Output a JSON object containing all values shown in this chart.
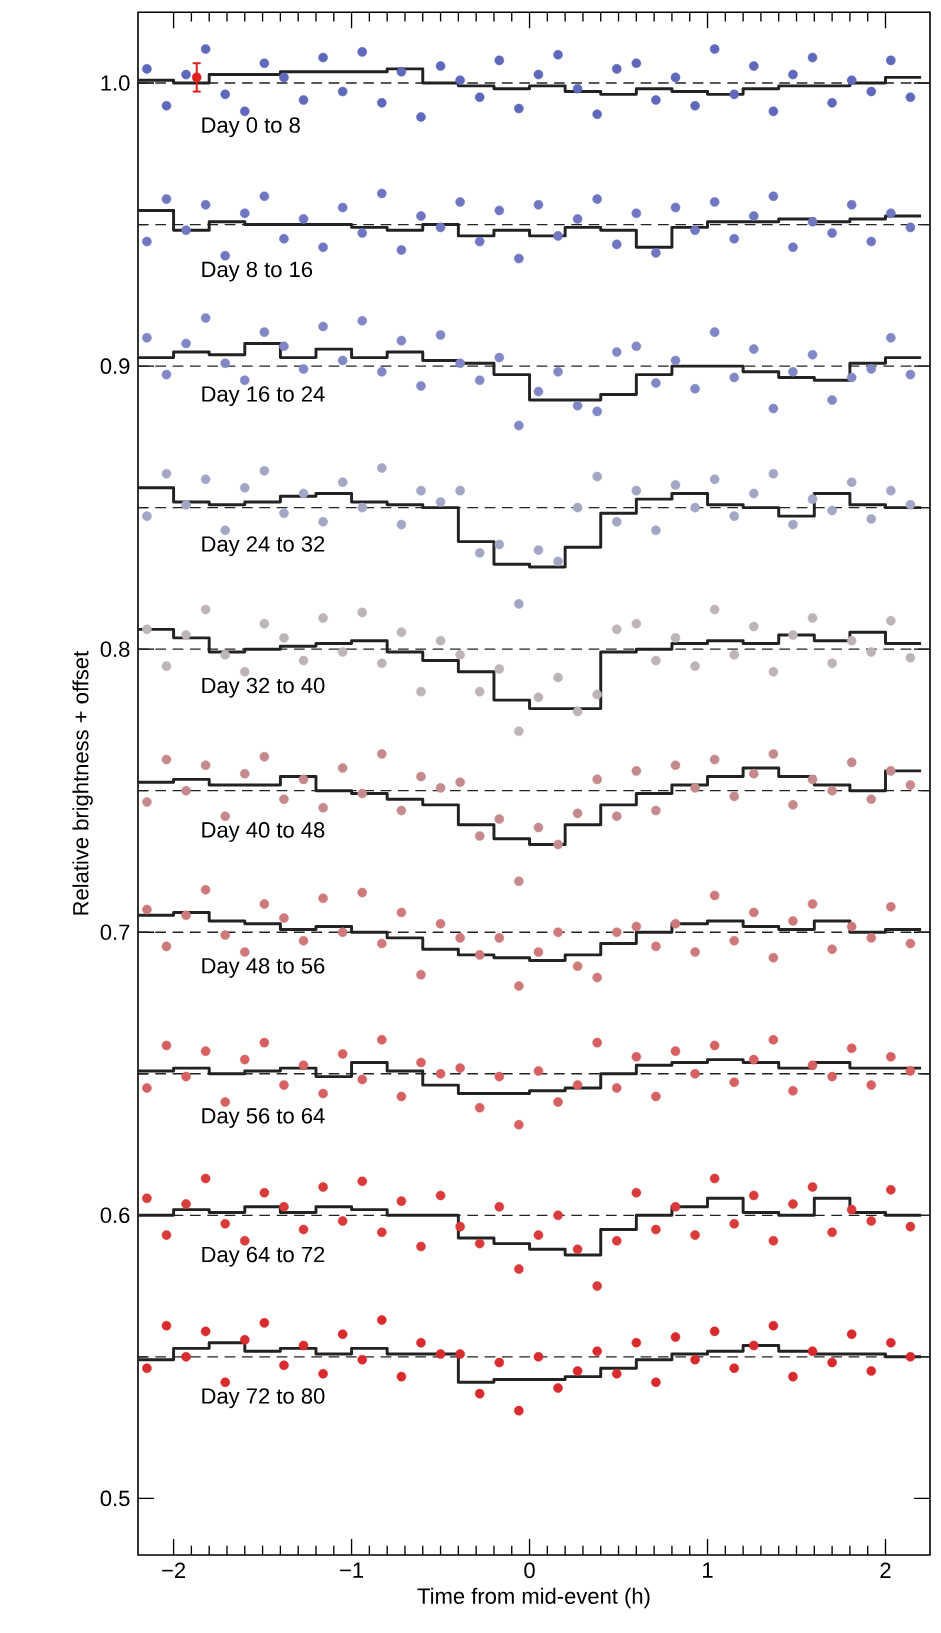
{
  "chart_data": {
    "type": "scatter",
    "xlabel": "Time from mid-event (h)",
    "ylabel": "Relative brightness + offset",
    "xlim": [
      -2.2,
      2.25
    ],
    "ylim": [
      0.48,
      1.025
    ],
    "xticks": [
      {
        "value": -2,
        "label": "−2"
      },
      {
        "value": -1,
        "label": "−1"
      },
      {
        "value": 0,
        "label": "0"
      },
      {
        "value": 1,
        "label": "1"
      },
      {
        "value": 2,
        "label": "2"
      }
    ],
    "yticks": [
      {
        "value": 0.5,
        "label": "0.5"
      },
      {
        "value": 0.6,
        "label": "0.6"
      },
      {
        "value": 0.7,
        "label": "0.7"
      },
      {
        "value": 0.8,
        "label": "0.8"
      },
      {
        "value": 0.9,
        "label": "0.9"
      },
      {
        "value": 1.0,
        "label": "1.0"
      }
    ],
    "grid": false,
    "x": [
      -2.15,
      -2.04,
      -1.93,
      -1.82,
      -1.71,
      -1.6,
      -1.49,
      -1.38,
      -1.27,
      -1.16,
      -1.05,
      -0.94,
      -0.83,
      -0.72,
      -0.61,
      -0.5,
      -0.39,
      -0.28,
      -0.17,
      -0.06,
      0.05,
      0.16,
      0.27,
      0.38,
      0.49,
      0.6,
      0.71,
      0.82,
      0.93,
      1.04,
      1.15,
      1.26,
      1.37,
      1.48,
      1.59,
      1.7,
      1.81,
      1.92,
      2.03,
      2.14
    ],
    "series": [
      {
        "name": "Day 0 to 8",
        "marker": "circle",
        "color": "#5f69bb",
        "values": [
          1.005,
          0.992,
          1.003,
          1.012,
          0.996,
          0.99,
          1.007,
          1.002,
          0.994,
          1.009,
          0.997,
          1.011,
          0.993,
          1.004,
          0.988,
          1.006,
          1.001,
          0.995,
          1.008,
          0.991,
          1.003,
          1.01,
          0.998,
          0.989,
          1.005,
          1.007,
          0.994,
          1.002,
          0.992,
          1.012,
          0.996,
          1.006,
          0.99,
          1.003,
          1.009,
          0.993,
          1.001,
          0.997,
          1.008,
          0.995
        ]
      },
      {
        "name": "Day 8 to 16",
        "marker": "circle",
        "color": "#6f77c2",
        "values": [
          0.944,
          0.959,
          0.948,
          0.957,
          0.939,
          0.954,
          0.96,
          0.945,
          0.952,
          0.942,
          0.956,
          0.947,
          0.961,
          0.941,
          0.953,
          0.949,
          0.958,
          0.944,
          0.955,
          0.938,
          0.957,
          0.946,
          0.952,
          0.959,
          0.943,
          0.954,
          0.94,
          0.956,
          0.948,
          0.958,
          0.945,
          0.953,
          0.96,
          0.942,
          0.951,
          0.947,
          0.957,
          0.944,
          0.954,
          0.949
        ]
      },
      {
        "name": "Day 16 to 24",
        "marker": "circle",
        "color": "#8088c6",
        "values": [
          0.91,
          0.897,
          0.908,
          0.917,
          0.901,
          0.895,
          0.912,
          0.907,
          0.899,
          0.914,
          0.902,
          0.916,
          0.898,
          0.909,
          0.893,
          0.911,
          0.901,
          0.895,
          0.903,
          0.879,
          0.891,
          0.898,
          0.886,
          0.884,
          0.905,
          0.907,
          0.894,
          0.902,
          0.892,
          0.912,
          0.896,
          0.906,
          0.885,
          0.898,
          0.904,
          0.888,
          0.896,
          0.899,
          0.91,
          0.897
        ]
      },
      {
        "name": "Day 24 to 32",
        "marker": "circle",
        "color": "#a3a6c4",
        "values": [
          0.847,
          0.862,
          0.851,
          0.86,
          0.842,
          0.857,
          0.863,
          0.848,
          0.855,
          0.845,
          0.859,
          0.85,
          0.864,
          0.844,
          0.856,
          0.852,
          0.856,
          0.834,
          0.837,
          0.816,
          0.835,
          0.831,
          0.85,
          0.861,
          0.845,
          0.856,
          0.842,
          0.858,
          0.85,
          0.86,
          0.847,
          0.855,
          0.862,
          0.844,
          0.853,
          0.849,
          0.859,
          0.846,
          0.856,
          0.851
        ]
      },
      {
        "name": "Day 32 to 40",
        "marker": "circle",
        "color": "#bdb4b6",
        "values": [
          0.807,
          0.794,
          0.805,
          0.814,
          0.798,
          0.792,
          0.809,
          0.804,
          0.796,
          0.811,
          0.799,
          0.813,
          0.795,
          0.806,
          0.785,
          0.803,
          0.798,
          0.785,
          0.793,
          0.771,
          0.783,
          0.79,
          0.778,
          0.784,
          0.807,
          0.809,
          0.796,
          0.804,
          0.794,
          0.814,
          0.798,
          0.808,
          0.792,
          0.805,
          0.811,
          0.795,
          0.803,
          0.799,
          0.81,
          0.797
        ]
      },
      {
        "name": "Day 40 to 48",
        "marker": "circle",
        "color": "#c48a8c",
        "values": [
          0.746,
          0.761,
          0.75,
          0.759,
          0.741,
          0.756,
          0.762,
          0.747,
          0.754,
          0.744,
          0.758,
          0.749,
          0.763,
          0.743,
          0.755,
          0.751,
          0.753,
          0.734,
          0.74,
          0.718,
          0.737,
          0.731,
          0.742,
          0.754,
          0.741,
          0.757,
          0.743,
          0.759,
          0.751,
          0.761,
          0.748,
          0.756,
          0.763,
          0.745,
          0.754,
          0.75,
          0.76,
          0.747,
          0.757,
          0.752
        ]
      },
      {
        "name": "Day 48 to 56",
        "marker": "circle",
        "color": "#cf7a7a",
        "values": [
          0.708,
          0.695,
          0.706,
          0.715,
          0.699,
          0.693,
          0.71,
          0.705,
          0.697,
          0.712,
          0.7,
          0.714,
          0.696,
          0.707,
          0.685,
          0.703,
          0.698,
          0.692,
          0.698,
          0.681,
          0.693,
          0.7,
          0.688,
          0.684,
          0.7,
          0.702,
          0.695,
          0.703,
          0.693,
          0.713,
          0.697,
          0.707,
          0.691,
          0.704,
          0.71,
          0.694,
          0.702,
          0.698,
          0.709,
          0.696
        ]
      },
      {
        "name": "Day 56 to 64",
        "marker": "circle",
        "color": "#d66062",
        "values": [
          0.645,
          0.66,
          0.649,
          0.658,
          0.64,
          0.655,
          0.661,
          0.646,
          0.653,
          0.643,
          0.657,
          0.648,
          0.662,
          0.642,
          0.654,
          0.65,
          0.652,
          0.638,
          0.649,
          0.632,
          0.651,
          0.64,
          0.646,
          0.661,
          0.645,
          0.656,
          0.642,
          0.658,
          0.65,
          0.66,
          0.647,
          0.655,
          0.662,
          0.644,
          0.653,
          0.649,
          0.659,
          0.646,
          0.656,
          0.651
        ]
      },
      {
        "name": "Day 64 to 72",
        "marker": "circle",
        "color": "#d93a3a",
        "values": [
          0.606,
          0.593,
          0.604,
          0.613,
          0.597,
          0.591,
          0.608,
          0.603,
          0.595,
          0.61,
          0.598,
          0.612,
          0.594,
          0.605,
          0.589,
          0.607,
          0.596,
          0.59,
          0.603,
          0.581,
          0.593,
          0.6,
          0.588,
          0.575,
          0.591,
          0.608,
          0.595,
          0.603,
          0.593,
          0.613,
          0.597,
          0.607,
          0.591,
          0.604,
          0.61,
          0.594,
          0.602,
          0.598,
          0.609,
          0.596
        ]
      },
      {
        "name": "Day 72 to 80",
        "marker": "circle",
        "color": "#d92a2e",
        "values": [
          0.546,
          0.561,
          0.55,
          0.559,
          0.541,
          0.556,
          0.562,
          0.547,
          0.554,
          0.544,
          0.558,
          0.549,
          0.563,
          0.543,
          0.555,
          0.551,
          0.551,
          0.537,
          0.548,
          0.531,
          0.55,
          0.539,
          0.545,
          0.552,
          0.544,
          0.555,
          0.541,
          0.557,
          0.549,
          0.559,
          0.546,
          0.554,
          0.561,
          0.543,
          0.552,
          0.548,
          0.558,
          0.545,
          0.555,
          0.55
        ]
      },
      {
        "type": "step",
        "marker": "none",
        "color": "#222222",
        "x": [
          -2.2,
          -2.0,
          -1.8,
          -1.6,
          -1.4,
          -1.2,
          -1.0,
          -0.8,
          -0.6,
          -0.4,
          -0.2,
          0.0,
          0.2,
          0.4,
          0.6,
          0.8,
          1.0,
          1.2,
          1.4,
          1.6,
          1.8,
          2.0,
          2.2
        ],
        "values": [
          1.001,
          1.0,
          1.003,
          1.003,
          1.004,
          1.004,
          1.004,
          1.005,
          1.0,
          0.999,
          0.998,
          0.999,
          0.997,
          0.996,
          0.998,
          0.997,
          0.996,
          0.998,
          0.999,
          0.999,
          1.0,
          1.002,
          1.002
        ]
      },
      {
        "type": "step",
        "color": "#222222",
        "x": [
          -2.2,
          -2.0,
          -1.8,
          -1.6,
          -1.4,
          -1.2,
          -1.0,
          -0.8,
          -0.6,
          -0.4,
          -0.2,
          0.0,
          0.2,
          0.4,
          0.6,
          0.8,
          1.0,
          1.2,
          1.4,
          1.6,
          1.8,
          2.0,
          2.2
        ],
        "marker": "none",
        "values": [
          0.955,
          0.948,
          0.951,
          0.95,
          0.95,
          0.95,
          0.949,
          0.948,
          0.95,
          0.946,
          0.948,
          0.946,
          0.949,
          0.948,
          0.942,
          0.949,
          0.951,
          0.951,
          0.952,
          0.951,
          0.952,
          0.953,
          0.953
        ]
      },
      {
        "type": "step",
        "color": "#222222",
        "x": [
          -2.2,
          -2.0,
          -1.8,
          -1.6,
          -1.4,
          -1.2,
          -1.0,
          -0.8,
          -0.6,
          -0.4,
          -0.2,
          0.0,
          0.2,
          0.4,
          0.6,
          0.8,
          1.0,
          1.2,
          1.4,
          1.6,
          1.8,
          2.0,
          2.2
        ],
        "marker": "none",
        "values": [
          0.903,
          0.905,
          0.904,
          0.908,
          0.903,
          0.906,
          0.903,
          0.905,
          0.902,
          0.901,
          0.897,
          0.888,
          0.888,
          0.89,
          0.897,
          0.9,
          0.9,
          0.898,
          0.896,
          0.895,
          0.901,
          0.903,
          0.903
        ]
      },
      {
        "type": "step",
        "color": "#222222",
        "x": [
          -2.2,
          -2.0,
          -1.8,
          -1.6,
          -1.4,
          -1.2,
          -1.0,
          -0.8,
          -0.6,
          -0.4,
          -0.2,
          0.0,
          0.2,
          0.4,
          0.6,
          0.8,
          1.0,
          1.2,
          1.4,
          1.6,
          1.8,
          2.0,
          2.2
        ],
        "marker": "none",
        "values": [
          0.857,
          0.852,
          0.851,
          0.852,
          0.854,
          0.855,
          0.852,
          0.851,
          0.85,
          0.838,
          0.83,
          0.829,
          0.836,
          0.848,
          0.853,
          0.855,
          0.851,
          0.85,
          0.847,
          0.855,
          0.851,
          0.85,
          0.85
        ]
      },
      {
        "type": "step",
        "color": "#222222",
        "x": [
          -2.2,
          -2.0,
          -1.8,
          -1.6,
          -1.4,
          -1.2,
          -1.0,
          -0.8,
          -0.6,
          -0.4,
          -0.2,
          0.0,
          0.2,
          0.4,
          0.6,
          0.8,
          1.0,
          1.2,
          1.4,
          1.6,
          1.8,
          2.0,
          2.2
        ],
        "marker": "none",
        "values": [
          0.807,
          0.804,
          0.799,
          0.8,
          0.801,
          0.802,
          0.803,
          0.799,
          0.796,
          0.792,
          0.782,
          0.779,
          0.779,
          0.799,
          0.8,
          0.802,
          0.803,
          0.802,
          0.805,
          0.803,
          0.806,
          0.802,
          0.802
        ]
      },
      {
        "type": "step",
        "color": "#222222",
        "x": [
          -2.2,
          -2.0,
          -1.8,
          -1.6,
          -1.4,
          -1.2,
          -1.0,
          -0.8,
          -0.6,
          -0.4,
          -0.2,
          0.0,
          0.2,
          0.4,
          0.6,
          0.8,
          1.0,
          1.2,
          1.4,
          1.6,
          1.8,
          2.0,
          2.2
        ],
        "marker": "none",
        "values": [
          0.753,
          0.754,
          0.752,
          0.752,
          0.755,
          0.75,
          0.749,
          0.747,
          0.745,
          0.738,
          0.733,
          0.731,
          0.738,
          0.745,
          0.749,
          0.752,
          0.755,
          0.758,
          0.755,
          0.752,
          0.75,
          0.757,
          0.757
        ]
      },
      {
        "type": "step",
        "color": "#222222",
        "x": [
          -2.2,
          -2.0,
          -1.8,
          -1.6,
          -1.4,
          -1.2,
          -1.0,
          -0.8,
          -0.6,
          -0.4,
          -0.2,
          0.0,
          0.2,
          0.4,
          0.6,
          0.8,
          1.0,
          1.2,
          1.4,
          1.6,
          1.8,
          2.0,
          2.2
        ],
        "marker": "none",
        "values": [
          0.706,
          0.707,
          0.704,
          0.703,
          0.701,
          0.702,
          0.7,
          0.698,
          0.694,
          0.692,
          0.691,
          0.69,
          0.692,
          0.696,
          0.7,
          0.703,
          0.704,
          0.702,
          0.701,
          0.704,
          0.7,
          0.701,
          0.701
        ]
      },
      {
        "type": "step",
        "color": "#222222",
        "x": [
          -2.2,
          -2.0,
          -1.8,
          -1.6,
          -1.4,
          -1.2,
          -1.0,
          -0.8,
          -0.6,
          -0.4,
          -0.2,
          0.0,
          0.2,
          0.4,
          0.6,
          0.8,
          1.0,
          1.2,
          1.4,
          1.6,
          1.8,
          2.0,
          2.2
        ],
        "marker": "none",
        "values": [
          0.651,
          0.652,
          0.65,
          0.651,
          0.652,
          0.649,
          0.654,
          0.651,
          0.646,
          0.643,
          0.643,
          0.644,
          0.645,
          0.65,
          0.653,
          0.654,
          0.655,
          0.654,
          0.652,
          0.654,
          0.652,
          0.652,
          0.652
        ]
      },
      {
        "type": "step",
        "color": "#222222",
        "x": [
          -2.2,
          -2.0,
          -1.8,
          -1.6,
          -1.4,
          -1.2,
          -1.0,
          -0.8,
          -0.6,
          -0.4,
          -0.2,
          0.0,
          0.2,
          0.4,
          0.6,
          0.8,
          1.0,
          1.2,
          1.4,
          1.6,
          1.8,
          2.0,
          2.2
        ],
        "marker": "none",
        "values": [
          0.6,
          0.602,
          0.601,
          0.603,
          0.601,
          0.603,
          0.602,
          0.6,
          0.6,
          0.592,
          0.59,
          0.588,
          0.586,
          0.595,
          0.6,
          0.603,
          0.606,
          0.601,
          0.6,
          0.606,
          0.601,
          0.6,
          0.6
        ]
      },
      {
        "type": "step",
        "color": "#222222",
        "x": [
          -2.2,
          -2.0,
          -1.8,
          -1.6,
          -1.4,
          -1.2,
          -1.0,
          -0.8,
          -0.6,
          -0.4,
          -0.2,
          0.0,
          0.2,
          0.4,
          0.6,
          0.8,
          1.0,
          1.2,
          1.4,
          1.6,
          1.8,
          2.0,
          2.2
        ],
        "marker": "none",
        "values": [
          0.549,
          0.553,
          0.555,
          0.552,
          0.553,
          0.551,
          0.553,
          0.551,
          0.551,
          0.541,
          0.542,
          0.542,
          0.543,
          0.546,
          0.549,
          0.551,
          0.552,
          0.554,
          0.552,
          0.551,
          0.551,
          0.55,
          0.55
        ]
      },
      {
        "marker": "circle",
        "color": "#e0201c",
        "x": [
          -1.87
        ],
        "values": [
          1.002
        ],
        "errors": [
          0.005
        ]
      }
    ],
    "ref_lines": [
      {
        "axis": "y",
        "value": 1.0,
        "color": "#222222",
        "line_style": "dashed"
      },
      {
        "axis": "y",
        "value": 0.95,
        "color": "#222222",
        "line_style": "dashed"
      },
      {
        "axis": "y",
        "value": 0.9,
        "color": "#222222",
        "line_style": "dashed"
      },
      {
        "axis": "y",
        "value": 0.85,
        "color": "#222222",
        "line_style": "dashed"
      },
      {
        "axis": "y",
        "value": 0.8,
        "color": "#222222",
        "line_style": "dashed"
      },
      {
        "axis": "y",
        "value": 0.75,
        "color": "#222222",
        "line_style": "dashed"
      },
      {
        "axis": "y",
        "value": 0.7,
        "color": "#222222",
        "line_style": "dashed"
      },
      {
        "axis": "y",
        "value": 0.65,
        "color": "#222222",
        "line_style": "dashed"
      },
      {
        "axis": "y",
        "value": 0.6,
        "color": "#222222",
        "line_style": "dashed"
      },
      {
        "axis": "y",
        "value": 0.55,
        "color": "#222222",
        "line_style": "dashed"
      }
    ]
  }
}
